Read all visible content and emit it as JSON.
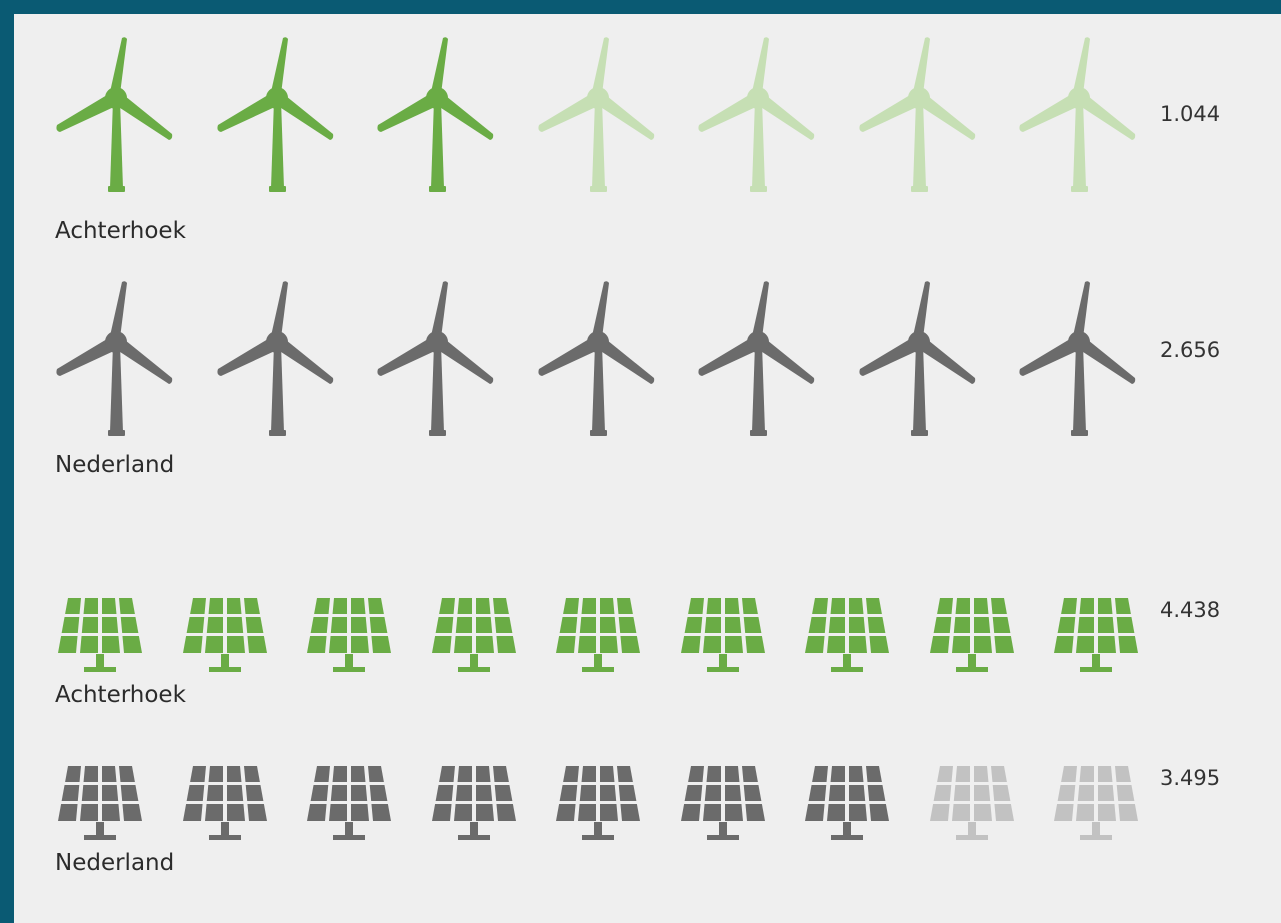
{
  "colors": {
    "frame": "#0a5a73",
    "background": "#efefef",
    "green": "#6aac45",
    "green_faded": "#c6dfb4",
    "gray": "#6b6b6b",
    "gray_faded": "#c2c2c2",
    "text": "#2b2b2b"
  },
  "icons": {
    "wind": "wind-turbine-icon",
    "solar": "solar-panel-icon"
  },
  "chart_data": [
    {
      "type": "pictogram",
      "icon": "wind-turbine-icon",
      "rows": [
        {
          "label": "Achterhoek",
          "value": "1.044",
          "icons_total": 7,
          "icons_filled": 3,
          "color": "green"
        },
        {
          "label": "Nederland",
          "value": "2.656",
          "icons_total": 7,
          "icons_filled": 7,
          "color": "gray"
        }
      ]
    },
    {
      "type": "pictogram",
      "icon": "solar-panel-icon",
      "rows": [
        {
          "label": "Achterhoek",
          "value": "4.438",
          "icons_total": 9,
          "icons_filled": 9,
          "color": "green"
        },
        {
          "label": "Nederland",
          "value": "3.495",
          "icons_total": 9,
          "icons_filled": 7,
          "color": "gray"
        }
      ]
    }
  ]
}
